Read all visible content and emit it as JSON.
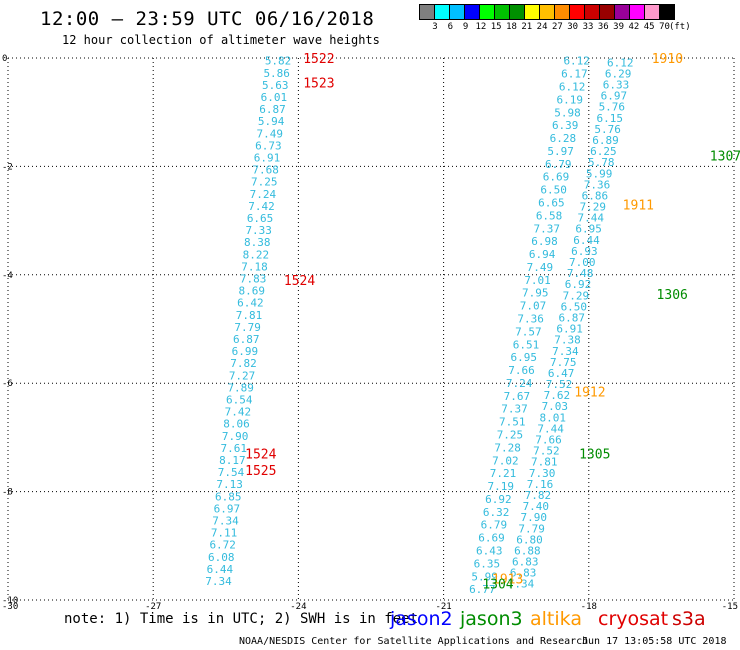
{
  "title": "12:00 – 23:59 UTC 06/16/2018",
  "subtitle": "12 hour collection of altimeter wave heights",
  "color_scale": {
    "colors": [
      "#7f7f7f",
      "#00ffff",
      "#00bfff",
      "#0000ff",
      "#00ff00",
      "#00c000",
      "#009000",
      "#ffff00",
      "#ffbf00",
      "#ff8c00",
      "#ff0000",
      "#cc0000",
      "#990000",
      "#990099",
      "#ff00ff",
      "#ff99cc",
      "#000000"
    ],
    "labels": [
      "3",
      "6",
      "9",
      "12",
      "15",
      "18",
      "21",
      "24",
      "27",
      "30",
      "33",
      "36",
      "39",
      "42",
      "45",
      "70",
      "(ft)"
    ]
  },
  "note": "note: 1) Time is in UTC; 2) SWH is in feet",
  "satellites": [
    {
      "name": "jason2",
      "color": "#0000ff"
    },
    {
      "name": "jason3",
      "color": "#008c00"
    },
    {
      "name": "altika",
      "color": "#ff9900"
    },
    {
      "name": "cryosat",
      "color": "#e00000"
    },
    {
      "name": "s3a",
      "color": "#cc0000"
    }
  ],
  "footer_center": "NOAA/NESDIS Center for Satellite Applications and Research",
  "footer_right": "Jun 17 13:05:58 UTC 2018",
  "chart_data": {
    "type": "scatter",
    "title": "12:00 – 23:59 UTC 06/16/2018",
    "subtitle": "12 hour collection of altimeter wave heights",
    "xlabel": "",
    "ylabel": "",
    "xlim": [
      -30,
      -15
    ],
    "ylim": [
      -10,
      0
    ],
    "xticks": [
      "-30",
      "-27",
      "-24",
      "-21",
      "-18",
      "-15"
    ],
    "yticks": [
      "0",
      "-2",
      "-4",
      "-6",
      "-8",
      "-10"
    ],
    "grid": true,
    "label_color": "#33bbdd",
    "tracks": [
      {
        "name": "track-a",
        "start": [
          -24.42,
          -0.05
        ],
        "end": [
          -25.65,
          -9.65
        ],
        "values": [
          "5.82",
          "5.86",
          "5.63",
          "6.01",
          "6.87",
          "5.94",
          "7.49",
          "6.73",
          "6.91",
          "7.68",
          "7.25",
          "7.24",
          "7.42",
          "6.65",
          "7.33",
          "8.38",
          "8.22",
          "7.18",
          "7.83",
          "8.69",
          "6.42",
          "7.81",
          "7.79",
          "6.87",
          "6.99",
          "7.82",
          "7.27",
          "7.89",
          "6.54",
          "7.42",
          "8.06",
          "7.90",
          "7.61",
          "8.17",
          "7.54",
          "7.13",
          "6.85",
          "6.97",
          "7.34",
          "7.11",
          "6.72",
          "6.08",
          "6.44",
          "7.34"
        ]
      },
      {
        "name": "track-b",
        "start": [
          -18.25,
          -0.05
        ],
        "end": [
          -20.2,
          -9.8
        ],
        "values": [
          "6.12",
          "6.17",
          "6.12",
          "6.19",
          "5.98",
          "6.39",
          "6.28",
          "5.97",
          "6.79",
          "6.69",
          "6.50",
          "6.65",
          "6.58",
          "7.37",
          "6.98",
          "6.94",
          "7.49",
          "7.01",
          "7.95",
          "7.07",
          "7.36",
          "7.57",
          "6.51",
          "6.95",
          "7.66",
          "7.24",
          "7.67",
          "7.37",
          "7.51",
          "7.25",
          "7.28",
          "7.02",
          "7.21",
          "7.19",
          "6.92",
          "6.32",
          "6.79",
          "6.69",
          "6.43",
          "6.35",
          "5.99",
          "6.77"
        ]
      },
      {
        "name": "track-c",
        "start": [
          -17.35,
          -0.08
        ],
        "end": [
          -19.4,
          -9.7
        ],
        "values": [
          "6.12",
          "6.29",
          "6.33",
          "6.97",
          "5.76",
          "6.15",
          "5.76",
          "6.89",
          "6.25",
          "5.78",
          "5.99",
          "7.36",
          "6.86",
          "7.29",
          "7.44",
          "6.95",
          "6.44",
          "6.93",
          "7.00",
          "7.48",
          "6.92",
          "7.29",
          "6.50",
          "6.87",
          "6.91",
          "7.38",
          "7.34",
          "7.75",
          "6.47",
          "7.52",
          "7.62",
          "7.03",
          "8.01",
          "7.44",
          "7.66",
          "7.52",
          "7.81",
          "7.30",
          "7.16",
          "7.82",
          "7.40",
          "7.90",
          "7.79",
          "6.80",
          "6.88",
          "6.83",
          "6.83",
          "7.34"
        ]
      }
    ],
    "time_labels": [
      {
        "text": "1522",
        "x": -23.9,
        "y": 0,
        "color": "#e00000"
      },
      {
        "text": "1523",
        "x": -23.9,
        "y": -0.45,
        "color": "#e00000"
      },
      {
        "text": "1524",
        "x": -24.3,
        "y": -4.1,
        "color": "#e00000"
      },
      {
        "text": "1524",
        "x": -25.1,
        "y": -7.3,
        "color": "#e00000"
      },
      {
        "text": "1525",
        "x": -25.1,
        "y": -7.6,
        "color": "#e00000"
      },
      {
        "text": "1910",
        "x": -16.7,
        "y": 0,
        "color": "#ff9900"
      },
      {
        "text": "1911",
        "x": -17.3,
        "y": -2.7,
        "color": "#ff9900"
      },
      {
        "text": "1912",
        "x": -18.3,
        "y": -6.15,
        "color": "#ff9900"
      },
      {
        "text": "1913",
        "x": -20.0,
        "y": -9.6,
        "color": "#ff9900"
      },
      {
        "text": "1307",
        "x": -15.5,
        "y": -1.8,
        "color": "#008c00"
      },
      {
        "text": "1306",
        "x": -16.6,
        "y": -4.35,
        "color": "#008c00"
      },
      {
        "text": "1305",
        "x": -18.2,
        "y": -7.3,
        "color": "#008c00"
      },
      {
        "text": "1304",
        "x": -20.2,
        "y": -9.7,
        "color": "#008c00"
      }
    ]
  }
}
